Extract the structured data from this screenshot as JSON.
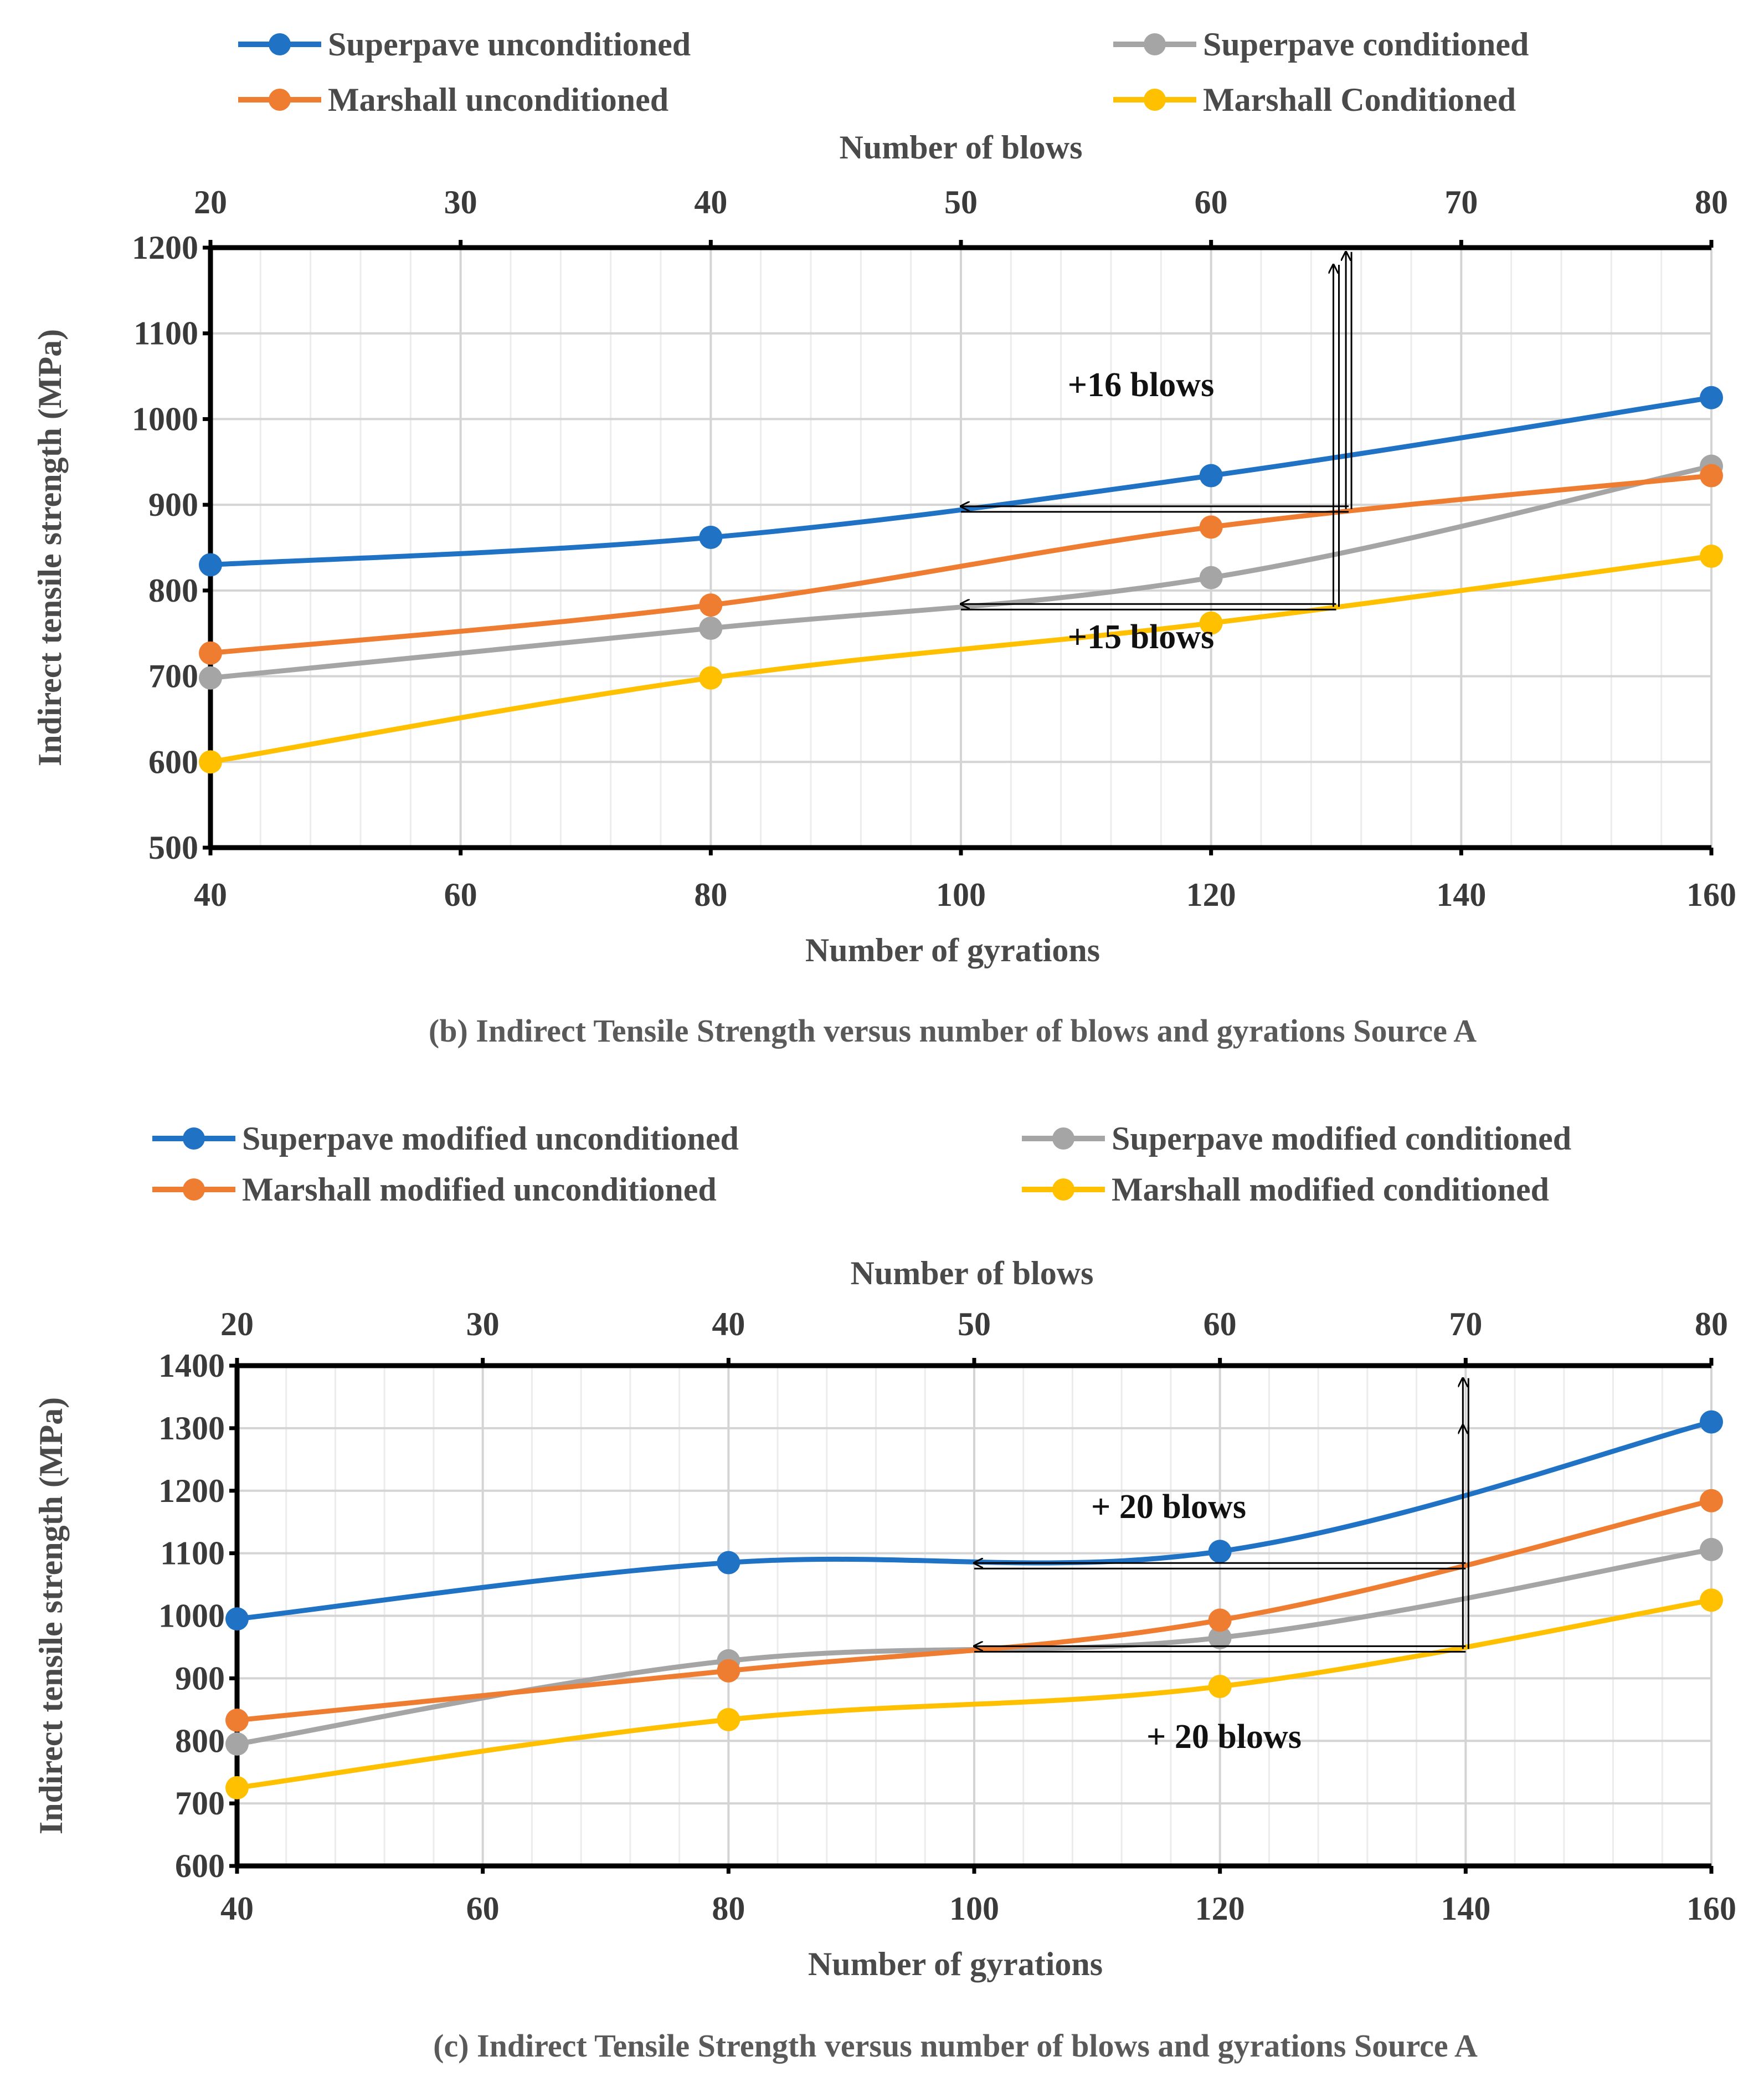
{
  "chart_data": [
    {
      "type": "line",
      "id": "b",
      "caption": "(b) Indirect Tensile Strength versus number of blows and gyrations Source A",
      "xlabel": "Number of gyrations",
      "x2label": "Number of blows",
      "ylabel": "Indirect tensile strength (MPa)",
      "xlim": [
        40,
        160
      ],
      "ylim": [
        500,
        1200
      ],
      "xticks": [
        "40",
        "60",
        "80",
        "100",
        "120",
        "140",
        "160"
      ],
      "x2ticks": [
        "20",
        "30",
        "40",
        "50",
        "60",
        "70",
        "80"
      ],
      "yticks": [
        "500",
        "600",
        "700",
        "800",
        "900",
        "1000",
        "1100",
        "1200"
      ],
      "x": [
        40,
        80,
        120,
        160
      ],
      "series": [
        {
          "name": "Superpave unconditioned",
          "color": "#1f72c4",
          "values": [
            830,
            862,
            934,
            1025
          ]
        },
        {
          "name": "Superpave conditioned",
          "color": "#a5a5a5",
          "values": [
            698,
            756,
            815,
            945
          ]
        },
        {
          "name": "Marshall unconditioned",
          "color": "#ef7d31",
          "values": [
            727,
            783,
            874,
            934
          ]
        },
        {
          "name": "Marshall Conditioned",
          "color": "#ffc000",
          "values": [
            600,
            698,
            762,
            840
          ]
        }
      ],
      "annotations": [
        {
          "text": "+16 blows"
        },
        {
          "text": "+15 blows"
        }
      ]
    },
    {
      "type": "line",
      "id": "c",
      "caption": "(c) Indirect Tensile Strength versus number of blows and gyrations Source A",
      "xlabel": "Number of gyrations",
      "x2label": "Number of blows",
      "ylabel": "Indirect tensile strength (MPa)",
      "xlim": [
        40,
        160
      ],
      "ylim": [
        600,
        1400
      ],
      "xticks": [
        "40",
        "60",
        "80",
        "100",
        "120",
        "140",
        "160"
      ],
      "x2ticks": [
        "20",
        "30",
        "40",
        "50",
        "60",
        "70",
        "80"
      ],
      "yticks": [
        "600",
        "700",
        "800",
        "900",
        "1000",
        "1100",
        "1200",
        "1300",
        "1400"
      ],
      "x": [
        40,
        80,
        120,
        160
      ],
      "series": [
        {
          "name": "Superpave modified unconditioned",
          "color": "#1f72c4",
          "values": [
            995,
            1085,
            1103,
            1310
          ]
        },
        {
          "name": "Superpave modified conditioned",
          "color": "#a5a5a5",
          "values": [
            795,
            928,
            965,
            1106
          ]
        },
        {
          "name": "Marshall modified unconditioned",
          "color": "#ef7d31",
          "values": [
            833,
            912,
            993,
            1184
          ]
        },
        {
          "name": "Marshall modified conditioned",
          "color": "#ffc000",
          "values": [
            725,
            834,
            887,
            1025
          ]
        }
      ],
      "annotations": [
        {
          "text": "+ 20 blows"
        },
        {
          "text": "+ 20 blows"
        }
      ]
    }
  ]
}
